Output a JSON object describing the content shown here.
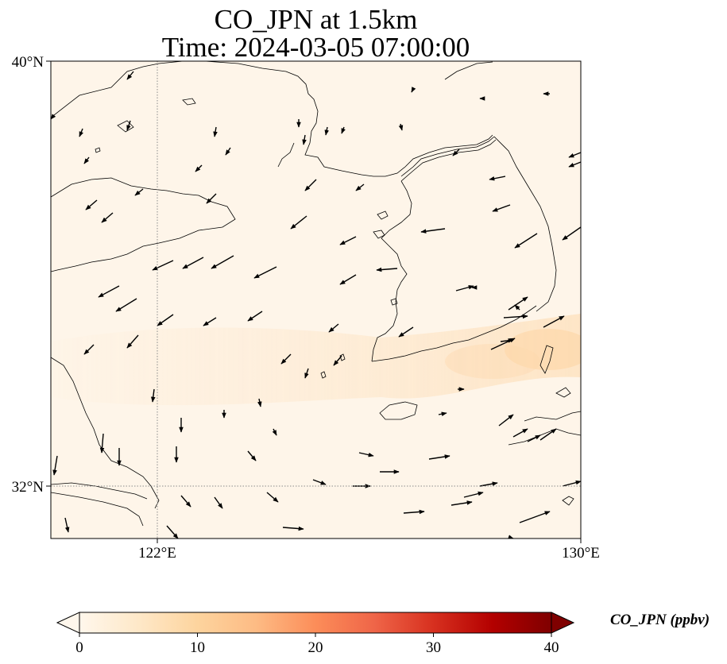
{
  "title": {
    "line1": "CO_JPN at 1.5km",
    "line2": "Time: 2024-03-05 07:00:00"
  },
  "map": {
    "lon_ticks": [
      "122°E",
      "130°E"
    ],
    "lat_ticks": [
      "40°N",
      "32°N"
    ],
    "colors": {
      "background": "#fef5e9",
      "plume": "#fdd3a0",
      "coastline": "#000000",
      "vector": "#000000",
      "gridline": "#8a8a8a"
    }
  },
  "colorbar": {
    "label": "CO_JPN (ppbv)",
    "ticks": [
      "0",
      "10",
      "20",
      "30",
      "40"
    ],
    "min": 0,
    "max": 40,
    "colormap": "OrRd",
    "extend": "both"
  }
}
